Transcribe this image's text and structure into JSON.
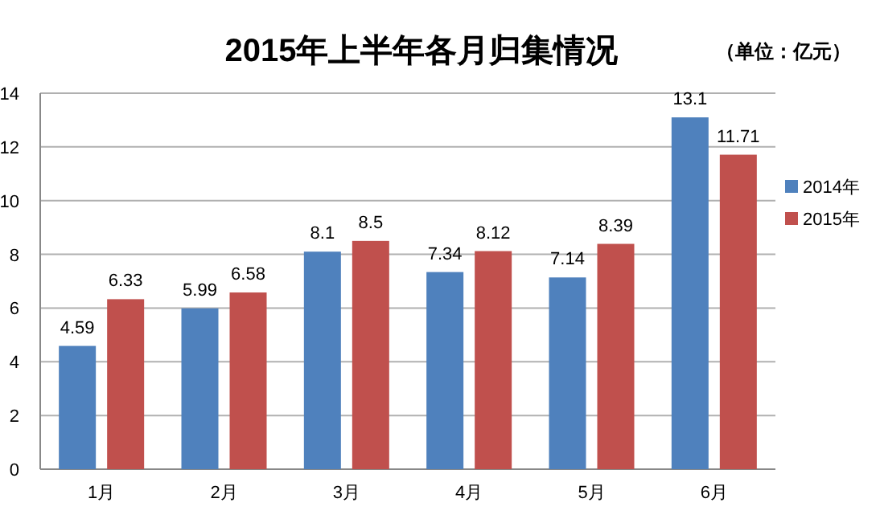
{
  "chart_data": {
    "type": "bar",
    "title": "2015年上半年各月归集情况",
    "subtitle": "（单位：亿元）",
    "categories": [
      "1月",
      "2月",
      "3月",
      "4月",
      "5月",
      "6月"
    ],
    "series": [
      {
        "name": "2014年",
        "color": "#4f81bd",
        "values": [
          4.59,
          5.99,
          8.1,
          7.34,
          7.14,
          13.1
        ]
      },
      {
        "name": "2015年",
        "color": "#c0504d",
        "values": [
          6.33,
          6.58,
          8.5,
          8.12,
          8.39,
          11.71
        ]
      }
    ],
    "ylim": [
      0,
      14
    ],
    "yticks": [
      0,
      2,
      4,
      6,
      8,
      10,
      12,
      14
    ],
    "grid": "y",
    "legend": "right",
    "data_labels": true
  }
}
